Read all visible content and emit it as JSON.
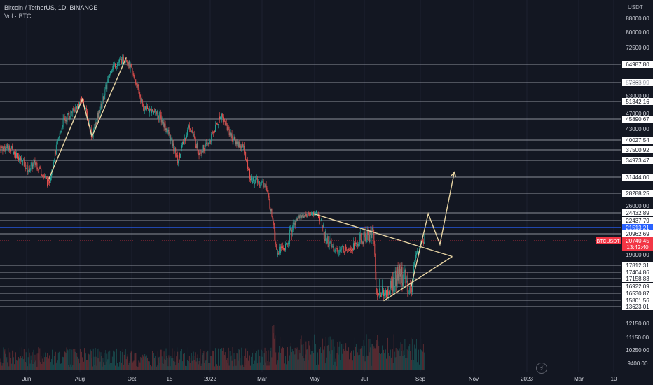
{
  "header": {
    "title": "Bitcoin / TetherUS, 1D, BINANCE",
    "subtitle": "Vol · BTC",
    "unit": "USDT"
  },
  "colors": {
    "background": "#131722",
    "up": "#26a69a",
    "down": "#ef5350",
    "level_line": "#d1d4dc",
    "drawing": "#e6d3a3",
    "last_price": "#f23645",
    "highlight_level": "#2962ff",
    "axis_text": "#d1d4dc"
  },
  "chart_data": {
    "type": "candlestick",
    "price_axis_labels": [
      "88000.00",
      "80000.00",
      "72500.00",
      "58000.00",
      "53000.00",
      "47000.00",
      "43000.00",
      "26000.00",
      "19000.00",
      "12150.00",
      "11150.00",
      "10250.00",
      "9400.00"
    ],
    "time_axis_labels": [
      "Jun",
      "Aug",
      "Oct",
      "15",
      "2022",
      "Mar",
      "May",
      "Jul",
      "Sep",
      "Nov",
      "2023",
      "Mar",
      "10"
    ],
    "horizontal_levels": [
      64987.8,
      57863.99,
      51342.16,
      45890.67,
      40027.54,
      37500.92,
      34973.47,
      31444.0,
      28288.25,
      24432.89,
      22437.79,
      21513.21,
      20962.69,
      17812.31,
      17404.86,
      17158.83,
      16922.09,
      16530.87,
      15801.56,
      13623.01
    ],
    "highlighted_level": 21513.21,
    "last_price": {
      "symbol": "BTCUSDT",
      "price": "20740.45",
      "countdown": "13:42:40",
      "value": 20740.45
    },
    "price_path": [
      [
        "2021-05-25",
        38000
      ],
      [
        "2021-06-05",
        36000
      ],
      [
        "2021-06-20",
        33000
      ],
      [
        "2021-07-01",
        34500
      ],
      [
        "2021-07-20",
        30000
      ],
      [
        "2021-08-10",
        45000
      ],
      [
        "2021-08-25",
        48000
      ],
      [
        "2021-09-07",
        52000
      ],
      [
        "2021-09-21",
        41000
      ],
      [
        "2021-10-05",
        50000
      ],
      [
        "2021-10-20",
        64000
      ],
      [
        "2021-11-10",
        68000
      ],
      [
        "2021-11-25",
        57000
      ],
      [
        "2021-12-05",
        49000
      ],
      [
        "2021-12-28",
        47000
      ],
      [
        "2022-01-10",
        42000
      ],
      [
        "2022-01-24",
        35000
      ],
      [
        "2022-02-10",
        44000
      ],
      [
        "2022-02-24",
        37000
      ],
      [
        "2022-03-10",
        39000
      ],
      [
        "2022-03-28",
        47000
      ],
      [
        "2022-04-15",
        40000
      ],
      [
        "2022-04-30",
        38000
      ],
      [
        "2022-05-10",
        31000
      ],
      [
        "2022-06-01",
        30000
      ],
      [
        "2022-06-13",
        22000
      ],
      [
        "2022-06-18",
        19500
      ],
      [
        "2022-07-01",
        20000
      ],
      [
        "2022-07-20",
        23500
      ],
      [
        "2022-08-14",
        24400
      ],
      [
        "2022-08-26",
        20800
      ],
      [
        "2022-09-13",
        19500
      ],
      [
        "2022-10-05",
        20000
      ],
      [
        "2022-11-05",
        21300
      ],
      [
        "2022-11-09",
        16500
      ],
      [
        "2022-11-25",
        16500
      ],
      [
        "2022-12-14",
        17500
      ],
      [
        "2022-12-30",
        16600
      ],
      [
        "2023-01-14",
        21000
      ],
      [
        "2023-01-18",
        20740
      ]
    ],
    "drawn_pattern_path": [
      [
        "2021-07-20",
        31000
      ],
      [
        "2021-09-07",
        52000
      ],
      [
        "2021-09-21",
        41000
      ],
      [
        "2021-11-10",
        68000
      ]
    ],
    "triangle": {
      "upper": [
        [
          "2022-08-10",
          24200
        ],
        [
          "2023-02-28",
          18800
        ]
      ],
      "lower": [
        [
          "2022-11-20",
          15600
        ],
        [
          "2023-02-28",
          18800
        ]
      ]
    },
    "projection_path": [
      [
        "2022-12-30",
        16900
      ],
      [
        "2023-01-24",
        24200
      ],
      [
        "2023-02-10",
        20300
      ],
      [
        "2023-03-03",
        32500
      ]
    ],
    "volume_shown": true,
    "xlabel": "",
    "ylabel": ""
  }
}
